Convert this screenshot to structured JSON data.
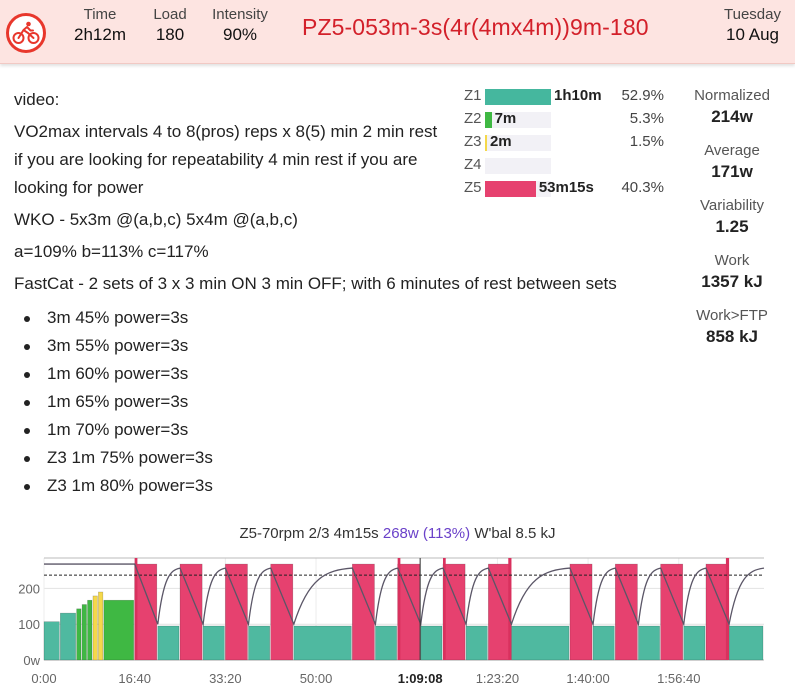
{
  "header": {
    "stats": [
      {
        "label": "Time",
        "value": "2h12m"
      },
      {
        "label": "Load",
        "value": "180"
      },
      {
        "label": "Intensity",
        "value": "90%"
      }
    ],
    "workout_title": "PZ5-053m-3s(4r(4mx4m))9m-180",
    "day_of_week": "Tuesday",
    "date": "10 Aug",
    "accent_color": "#e8372c"
  },
  "description": {
    "intro": "video:",
    "p1": "VO2max intervals 4 to 8(pros) reps x 8(5) min 2 min rest if you are looking for repeatability 4 min rest if you are looking for power",
    "p2": "WKO - 5x3m @(a,b,c) 5x4m @(a,b,c)",
    "p3": "a=109% b=113% c=117%",
    "p4": "FastCat - 2 sets of 3 x 3 min ON 3 min OFF; with 6 minutes of rest between sets",
    "steps": [
      "3m 45% power=3s",
      "3m 55% power=3s",
      "1m 60% power=3s",
      "1m 65% power=3s",
      "1m 70% power=3s",
      "Z3 1m 75% power=3s",
      "Z3 1m 80% power=3s"
    ]
  },
  "zones": [
    {
      "name": "Z1",
      "time": "1h10m",
      "pct": "52.9%",
      "fraction": 1.0,
      "color": "#45b79e"
    },
    {
      "name": "Z2",
      "time": "7m",
      "pct": "5.3%",
      "fraction": 0.1,
      "color": "#3fb843"
    },
    {
      "name": "Z3",
      "time": "2m",
      "pct": "1.5%",
      "fraction": 0.03,
      "color": "#f5d84a"
    },
    {
      "name": "Z4",
      "time": "",
      "pct": "",
      "fraction": 0,
      "color": "#f0a23a"
    },
    {
      "name": "Z5",
      "time": "53m15s",
      "pct": "40.3%",
      "fraction": 0.77,
      "color": "#e6416f"
    }
  ],
  "metrics": [
    {
      "label": "Normalized",
      "value": "214w"
    },
    {
      "label": "Average",
      "value": "171w"
    },
    {
      "label": "Variability",
      "value": "1.25"
    },
    {
      "label": "Work",
      "value": "1357 kJ"
    },
    {
      "label": "Work>FTP",
      "value": "858 kJ"
    }
  ],
  "interval_info": {
    "name": "Z5-70rpm 2/3",
    "duration": "4m15s",
    "power": "268w",
    "percent": "(113%)",
    "wbal": "W'bal 8.5 kJ"
  },
  "chart_data": {
    "type": "bar",
    "x_ticks": [
      "0:00",
      "16:40",
      "33:20",
      "50:00",
      "1:09:08",
      "1:23:20",
      "1:40:00",
      "1:56:40"
    ],
    "x_tick_seconds": [
      0,
      1000,
      2000,
      3000,
      4148,
      5000,
      6000,
      7000
    ],
    "x_max_seconds": 7940,
    "bold_tick": "1:09:08",
    "y_ticks": [
      "0w",
      "100",
      "200"
    ],
    "y_tick_values": [
      0,
      100,
      200
    ],
    "y_max": 285,
    "ftp_watts": 237,
    "cursor_seconds": 4148,
    "colors": {
      "z1": "#4fb9a0",
      "z2": "#3fb843",
      "z3": "#f5d84a",
      "z5": "#e6416f"
    },
    "segments": [
      {
        "start": 0,
        "end": 180,
        "watts": 107,
        "zone": "z1"
      },
      {
        "start": 180,
        "end": 360,
        "watts": 131,
        "zone": "z1"
      },
      {
        "start": 360,
        "end": 420,
        "watts": 143,
        "zone": "z2"
      },
      {
        "start": 420,
        "end": 480,
        "watts": 155,
        "zone": "z2"
      },
      {
        "start": 480,
        "end": 540,
        "watts": 167,
        "zone": "z2"
      },
      {
        "start": 540,
        "end": 600,
        "watts": 179,
        "zone": "z3"
      },
      {
        "start": 600,
        "end": 660,
        "watts": 190,
        "zone": "z3"
      },
      {
        "start": 660,
        "end": 1000,
        "watts": 167,
        "zone": "z2"
      },
      {
        "start": 1000,
        "end": 1255,
        "watts": 268,
        "zone": "z5"
      },
      {
        "start": 1255,
        "end": 1500,
        "watts": 95,
        "zone": "z1"
      },
      {
        "start": 1500,
        "end": 1755,
        "watts": 268,
        "zone": "z5"
      },
      {
        "start": 1755,
        "end": 2000,
        "watts": 95,
        "zone": "z1"
      },
      {
        "start": 2000,
        "end": 2255,
        "watts": 268,
        "zone": "z5"
      },
      {
        "start": 2255,
        "end": 2500,
        "watts": 95,
        "zone": "z1"
      },
      {
        "start": 2500,
        "end": 2755,
        "watts": 268,
        "zone": "z5"
      },
      {
        "start": 2755,
        "end": 3400,
        "watts": 95,
        "zone": "z1"
      },
      {
        "start": 3400,
        "end": 3655,
        "watts": 268,
        "zone": "z5"
      },
      {
        "start": 3655,
        "end": 3900,
        "watts": 95,
        "zone": "z1"
      },
      {
        "start": 3900,
        "end": 4155,
        "watts": 268,
        "zone": "z5"
      },
      {
        "start": 4155,
        "end": 4400,
        "watts": 95,
        "zone": "z1"
      },
      {
        "start": 4400,
        "end": 4655,
        "watts": 268,
        "zone": "z5"
      },
      {
        "start": 4655,
        "end": 4900,
        "watts": 95,
        "zone": "z1"
      },
      {
        "start": 4900,
        "end": 5155,
        "watts": 268,
        "zone": "z5"
      },
      {
        "start": 5155,
        "end": 5800,
        "watts": 95,
        "zone": "z1"
      },
      {
        "start": 5800,
        "end": 6055,
        "watts": 268,
        "zone": "z5"
      },
      {
        "start": 6055,
        "end": 6300,
        "watts": 95,
        "zone": "z1"
      },
      {
        "start": 6300,
        "end": 6555,
        "watts": 268,
        "zone": "z5"
      },
      {
        "start": 6555,
        "end": 6800,
        "watts": 95,
        "zone": "z1"
      },
      {
        "start": 6800,
        "end": 7055,
        "watts": 268,
        "zone": "z5"
      },
      {
        "start": 7055,
        "end": 7300,
        "watts": 95,
        "zone": "z1"
      },
      {
        "start": 7300,
        "end": 7555,
        "watts": 268,
        "zone": "z5"
      },
      {
        "start": 7555,
        "end": 7940,
        "watts": 95,
        "zone": "z1"
      }
    ],
    "spikes": [
      {
        "start": 1000,
        "end": 1030,
        "watts": 285
      },
      {
        "start": 3900,
        "end": 3930,
        "watts": 285
      },
      {
        "start": 4400,
        "end": 4430,
        "watts": 285
      },
      {
        "start": 5120,
        "end": 5155,
        "watts": 285
      },
      {
        "start": 7520,
        "end": 7555,
        "watts": 285
      }
    ]
  }
}
